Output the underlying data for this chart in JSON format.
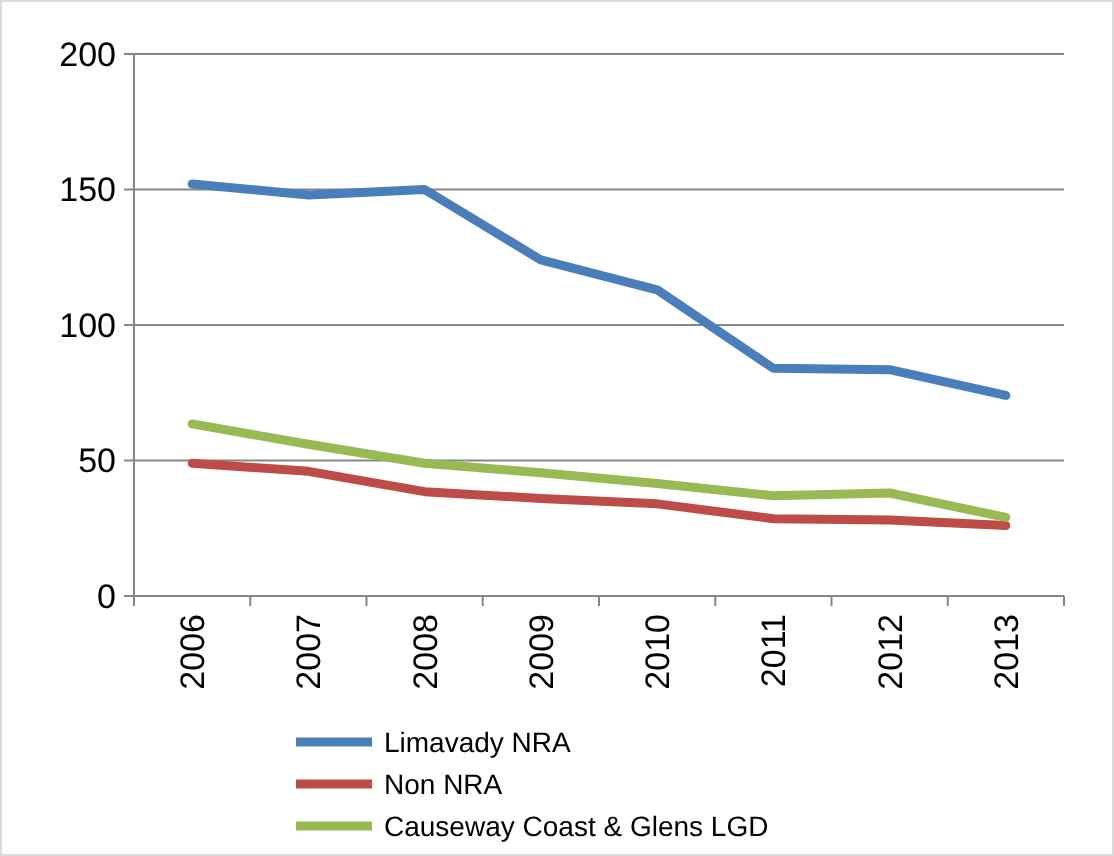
{
  "chart_data": {
    "type": "line",
    "categories": [
      "2006",
      "2007",
      "2008",
      "2009",
      "2010",
      "2011",
      "2012",
      "2013"
    ],
    "series": [
      {
        "name": "Limavady NRA",
        "color": "#4a7ebb",
        "values": [
          152,
          148,
          150,
          124,
          113,
          84,
          83.5,
          74
        ]
      },
      {
        "name": "Non NRA",
        "color": "#be4b48",
        "values": [
          49,
          46,
          38.5,
          36,
          34,
          28.5,
          28,
          26
        ]
      },
      {
        "name": "Causeway Coast & Glens LGD",
        "color": "#98b954",
        "values": [
          63.5,
          56,
          49,
          45.5,
          41.5,
          37,
          38,
          29
        ]
      }
    ],
    "ylim": [
      0,
      200
    ],
    "yticks": [
      0,
      50,
      100,
      150,
      200
    ],
    "grid": "y",
    "legend": "bottom",
    "marker": "none",
    "line_style": "solid"
  }
}
